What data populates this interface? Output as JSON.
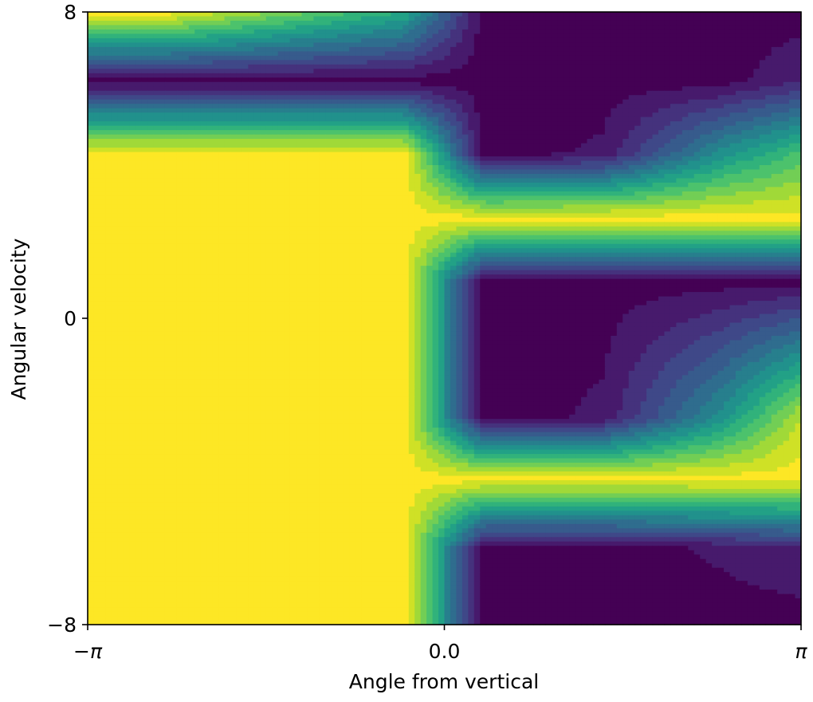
{
  "chart_data": {
    "type": "heatmap",
    "xlabel": "Angle from vertical",
    "ylabel": "Angular velocity",
    "xlim": [
      "-π",
      "π"
    ],
    "ylim": [
      -8,
      8
    ],
    "x_ticks": [
      {
        "value": -3.14159,
        "label": "−π"
      },
      {
        "value": 0.0,
        "label": "0.0"
      },
      {
        "value": 3.14159,
        "label": "π"
      }
    ],
    "y_ticks": [
      {
        "value": 8,
        "label": "8"
      },
      {
        "value": 0,
        "label": "0"
      },
      {
        "value": -8,
        "label": "−8"
      }
    ],
    "colormap": "viridis",
    "color_low": "#440154",
    "color_high": "#fde725",
    "plot_kind": "filled contour",
    "grid": false,
    "legend": false,
    "x_nodes": [
      -3.14159,
      -2.443,
      -0.349,
      0.349,
      1.396,
      2.443,
      3.14159
    ],
    "y_nodes": [
      -8,
      -6.0,
      -4.2,
      -2.6,
      1.0,
      2.6,
      4.3,
      6.2,
      8
    ],
    "values": [
      [
        1.0,
        1.0,
        1.0,
        0.0,
        0.0,
        0.0,
        0.0
      ],
      [
        1.0,
        1.0,
        1.0,
        0.0,
        0.0,
        0.05,
        0.1
      ],
      [
        1.0,
        1.0,
        1.0,
        1.0,
        1.0,
        1.0,
        1.0
      ],
      [
        1.0,
        1.0,
        1.0,
        0.0,
        0.05,
        0.5,
        0.9
      ],
      [
        1.0,
        1.0,
        1.0,
        0.0,
        0.0,
        0.0,
        0.0
      ],
      [
        1.0,
        1.0,
        1.0,
        1.0,
        1.0,
        1.0,
        1.0
      ],
      [
        1.0,
        1.0,
        1.0,
        0.0,
        0.05,
        0.5,
        0.7
      ],
      [
        0.0,
        0.0,
        0.0,
        0.0,
        0.0,
        0.0,
        0.1
      ],
      [
        1.0,
        1.0,
        0.6,
        0.0,
        0.0,
        0.0,
        0.0
      ]
    ]
  }
}
